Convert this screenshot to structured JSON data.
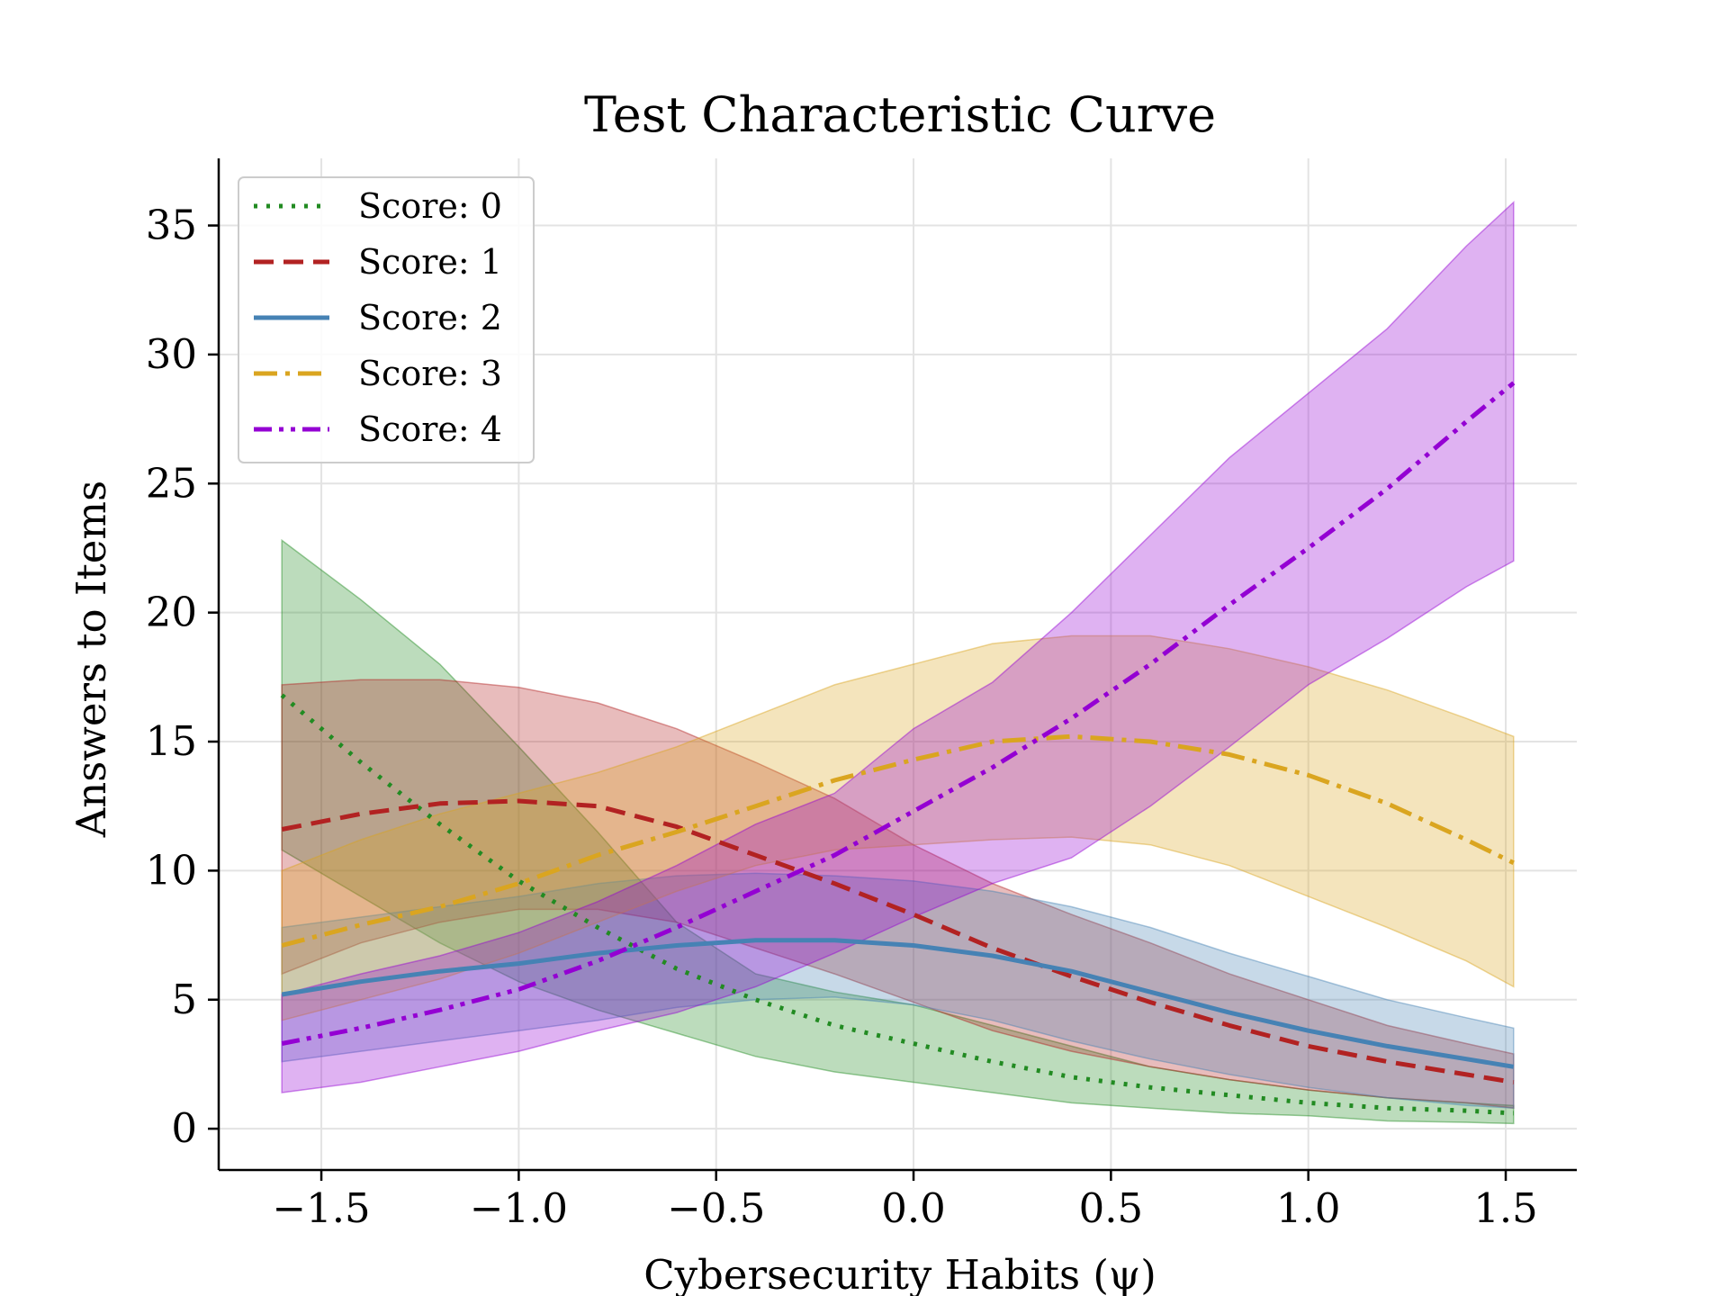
{
  "chart_data": {
    "type": "line",
    "title": "Test Characteristic Curve",
    "xlabel": "Cybersecurity Habits (ψ)",
    "ylabel": "Answers to Items",
    "xlim": [
      -1.76,
      1.68
    ],
    "ylim": [
      -1.6,
      37.6
    ],
    "grid": true,
    "legend_position": "top-left",
    "x_ticks": [
      -1.5,
      -1.0,
      -0.5,
      0.0,
      0.5,
      1.0,
      1.5
    ],
    "x_tick_labels": [
      "−1.5",
      "−1.0",
      "−0.5",
      "0.0",
      "0.5",
      "1.0",
      "1.5"
    ],
    "y_ticks": [
      0,
      5,
      10,
      15,
      20,
      25,
      30,
      35
    ],
    "y_tick_labels": [
      "0",
      "5",
      "10",
      "15",
      "20",
      "25",
      "30",
      "35"
    ],
    "x": [
      -1.6,
      -1.4,
      -1.2,
      -1.0,
      -0.8,
      -0.6,
      -0.4,
      -0.2,
      0.0,
      0.2,
      0.4,
      0.6,
      0.8,
      1.0,
      1.2,
      1.4,
      1.52
    ],
    "series": [
      {
        "name": "Score: 0",
        "color": "#228b22",
        "dash": "dotted",
        "values": [
          16.8,
          14.2,
          11.8,
          9.6,
          7.8,
          6.2,
          5.0,
          4.0,
          3.3,
          2.6,
          2.0,
          1.6,
          1.3,
          1.0,
          0.8,
          0.7,
          0.6
        ],
        "lower": [
          10.8,
          9.0,
          7.2,
          5.7,
          4.6,
          3.7,
          2.8,
          2.2,
          1.8,
          1.4,
          1.0,
          0.8,
          0.6,
          0.5,
          0.3,
          0.25,
          0.2
        ],
        "upper": [
          22.8,
          20.5,
          18.0,
          14.8,
          11.5,
          8.0,
          6.0,
          5.3,
          4.8,
          4.0,
          3.2,
          2.4,
          1.9,
          1.5,
          1.2,
          1.0,
          0.9
        ]
      },
      {
        "name": "Score: 1",
        "color": "#b22222",
        "dash": "dashed",
        "values": [
          11.6,
          12.2,
          12.6,
          12.7,
          12.5,
          11.7,
          10.6,
          9.5,
          8.3,
          7.0,
          5.9,
          4.9,
          4.0,
          3.2,
          2.6,
          2.1,
          1.8
        ],
        "lower": [
          6.0,
          7.2,
          8.0,
          8.5,
          8.5,
          8.0,
          7.0,
          6.0,
          4.9,
          3.8,
          3.0,
          2.4,
          1.9,
          1.5,
          1.2,
          1.0,
          0.8
        ],
        "upper": [
          17.2,
          17.4,
          17.4,
          17.1,
          16.5,
          15.5,
          14.2,
          12.8,
          11.0,
          9.5,
          8.3,
          7.2,
          6.0,
          5.0,
          4.0,
          3.3,
          2.9
        ]
      },
      {
        "name": "Score: 2",
        "color": "#4682b4",
        "dash": "solid",
        "values": [
          5.2,
          5.7,
          6.1,
          6.4,
          6.8,
          7.1,
          7.3,
          7.3,
          7.1,
          6.7,
          6.1,
          5.3,
          4.5,
          3.8,
          3.2,
          2.7,
          2.4
        ],
        "lower": [
          2.6,
          3.0,
          3.4,
          3.8,
          4.2,
          4.7,
          5.0,
          5.1,
          4.8,
          4.2,
          3.4,
          2.7,
          2.1,
          1.6,
          1.2,
          0.9,
          0.8
        ],
        "upper": [
          7.8,
          8.2,
          8.6,
          9.0,
          9.5,
          9.8,
          9.9,
          9.8,
          9.6,
          9.2,
          8.6,
          7.8,
          6.8,
          5.9,
          5.0,
          4.3,
          3.9
        ]
      },
      {
        "name": "Score: 3",
        "color": "#daa520",
        "dash": "dashdot",
        "values": [
          7.1,
          7.9,
          8.6,
          9.5,
          10.6,
          11.5,
          12.5,
          13.5,
          14.3,
          15.0,
          15.2,
          15.0,
          14.5,
          13.7,
          12.6,
          11.2,
          10.3
        ],
        "lower": [
          4.2,
          5.0,
          5.8,
          6.8,
          8.0,
          9.2,
          10.2,
          10.8,
          11.0,
          11.2,
          11.3,
          11.0,
          10.2,
          9.0,
          7.8,
          6.5,
          5.5
        ],
        "upper": [
          10.0,
          11.2,
          12.2,
          13.0,
          13.8,
          14.8,
          16.0,
          17.2,
          18.0,
          18.8,
          19.1,
          19.1,
          18.6,
          17.9,
          17.0,
          15.9,
          15.2
        ]
      },
      {
        "name": "Score: 4",
        "color": "#9400d3",
        "dash": "dashdotdot",
        "values": [
          3.3,
          3.9,
          4.6,
          5.4,
          6.5,
          7.8,
          9.2,
          10.6,
          12.3,
          14.0,
          15.9,
          18.0,
          20.3,
          22.5,
          24.8,
          27.4,
          28.9
        ],
        "lower": [
          1.4,
          1.8,
          2.4,
          3.0,
          3.8,
          4.5,
          5.5,
          6.8,
          8.2,
          9.5,
          10.5,
          12.5,
          14.8,
          17.2,
          19.0,
          21.0,
          22.0
        ],
        "upper": [
          5.2,
          6.0,
          6.7,
          7.6,
          8.8,
          10.2,
          11.8,
          13.0,
          15.5,
          17.3,
          20.0,
          23.0,
          26.0,
          28.5,
          31.0,
          34.2,
          35.9
        ]
      }
    ]
  }
}
